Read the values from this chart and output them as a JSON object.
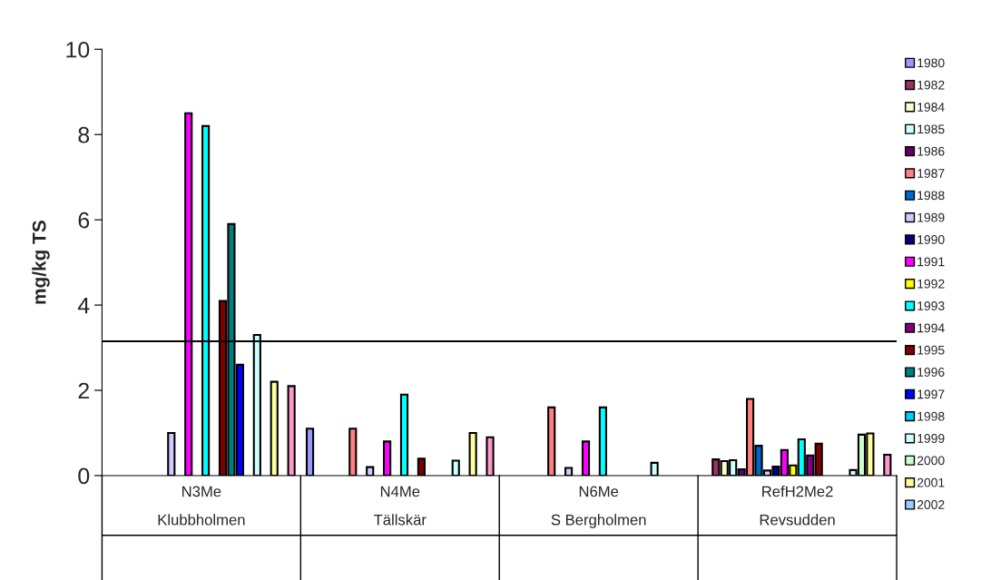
{
  "chart_data": {
    "type": "bar",
    "ylabel": "mg/kg TS",
    "categories": [
      "N3Me\nKlubbholmen",
      "N4Me\nTällskär",
      "N6Me\nS Bergholmen",
      "RefH2Me2\nRevsudden"
    ],
    "series": [
      {
        "name": "1980",
        "color": "#9999ff",
        "values": [
          null,
          1.1,
          null,
          null
        ]
      },
      {
        "name": "1982",
        "color": "#993366",
        "values": [
          null,
          null,
          null,
          0.38
        ]
      },
      {
        "name": "1984",
        "color": "#ffffcc",
        "values": [
          null,
          null,
          null,
          0.34
        ]
      },
      {
        "name": "1985",
        "color": "#ccffff",
        "values": [
          null,
          null,
          null,
          0.36
        ]
      },
      {
        "name": "1986",
        "color": "#660066",
        "values": [
          null,
          null,
          null,
          0.15
        ]
      },
      {
        "name": "1987",
        "color": "#ff8080",
        "values": [
          null,
          1.1,
          1.6,
          1.8
        ]
      },
      {
        "name": "1988",
        "color": "#0066cc",
        "values": [
          null,
          null,
          null,
          0.7
        ]
      },
      {
        "name": "1989",
        "color": "#ccccff",
        "values": [
          1.0,
          0.2,
          0.18,
          0.12
        ]
      },
      {
        "name": "1990",
        "color": "#000080",
        "values": [
          null,
          null,
          null,
          0.21
        ]
      },
      {
        "name": "1991",
        "color": "#ff00ff",
        "values": [
          8.5,
          0.8,
          0.8,
          0.6
        ]
      },
      {
        "name": "1992",
        "color": "#ffff00",
        "values": [
          null,
          null,
          null,
          0.24
        ]
      },
      {
        "name": "1993",
        "color": "#00ffff",
        "values": [
          8.2,
          1.9,
          1.6,
          0.85
        ]
      },
      {
        "name": "1994",
        "color": "#800080",
        "values": [
          null,
          null,
          null,
          0.47
        ]
      },
      {
        "name": "1995",
        "color": "#800000",
        "values": [
          4.1,
          0.4,
          null,
          0.75
        ]
      },
      {
        "name": "1996",
        "color": "#008080",
        "values": [
          5.9,
          null,
          null,
          null
        ]
      },
      {
        "name": "1997",
        "color": "#0000ff",
        "values": [
          2.6,
          null,
          null,
          null
        ]
      },
      {
        "name": "1998",
        "color": "#00ccff",
        "values": [
          null,
          null,
          null,
          null
        ]
      },
      {
        "name": "1999",
        "color": "#ccffff",
        "values": [
          3.3,
          0.35,
          0.3,
          0.13
        ]
      },
      {
        "name": "2000",
        "color": "#ccffcc",
        "values": [
          null,
          null,
          null,
          0.96
        ]
      },
      {
        "name": "2001",
        "color": "#ffff99",
        "values": [
          2.2,
          1.0,
          null,
          0.99
        ]
      },
      {
        "name": "2002",
        "color": "#99ccff",
        "values": [
          null,
          null,
          null,
          null
        ]
      },
      {
        "color": "#ff99cc",
        "values": [
          2.1,
          0.9,
          null,
          0.49
        ]
      }
    ],
    "ylim": [
      0,
      10
    ],
    "yticks": [
      0,
      2,
      4,
      6,
      8,
      10
    ],
    "ref_lines": [
      {
        "axis": "y",
        "value": 3.15,
        "color": "#000000"
      }
    ],
    "grid": false,
    "legend": "right"
  }
}
